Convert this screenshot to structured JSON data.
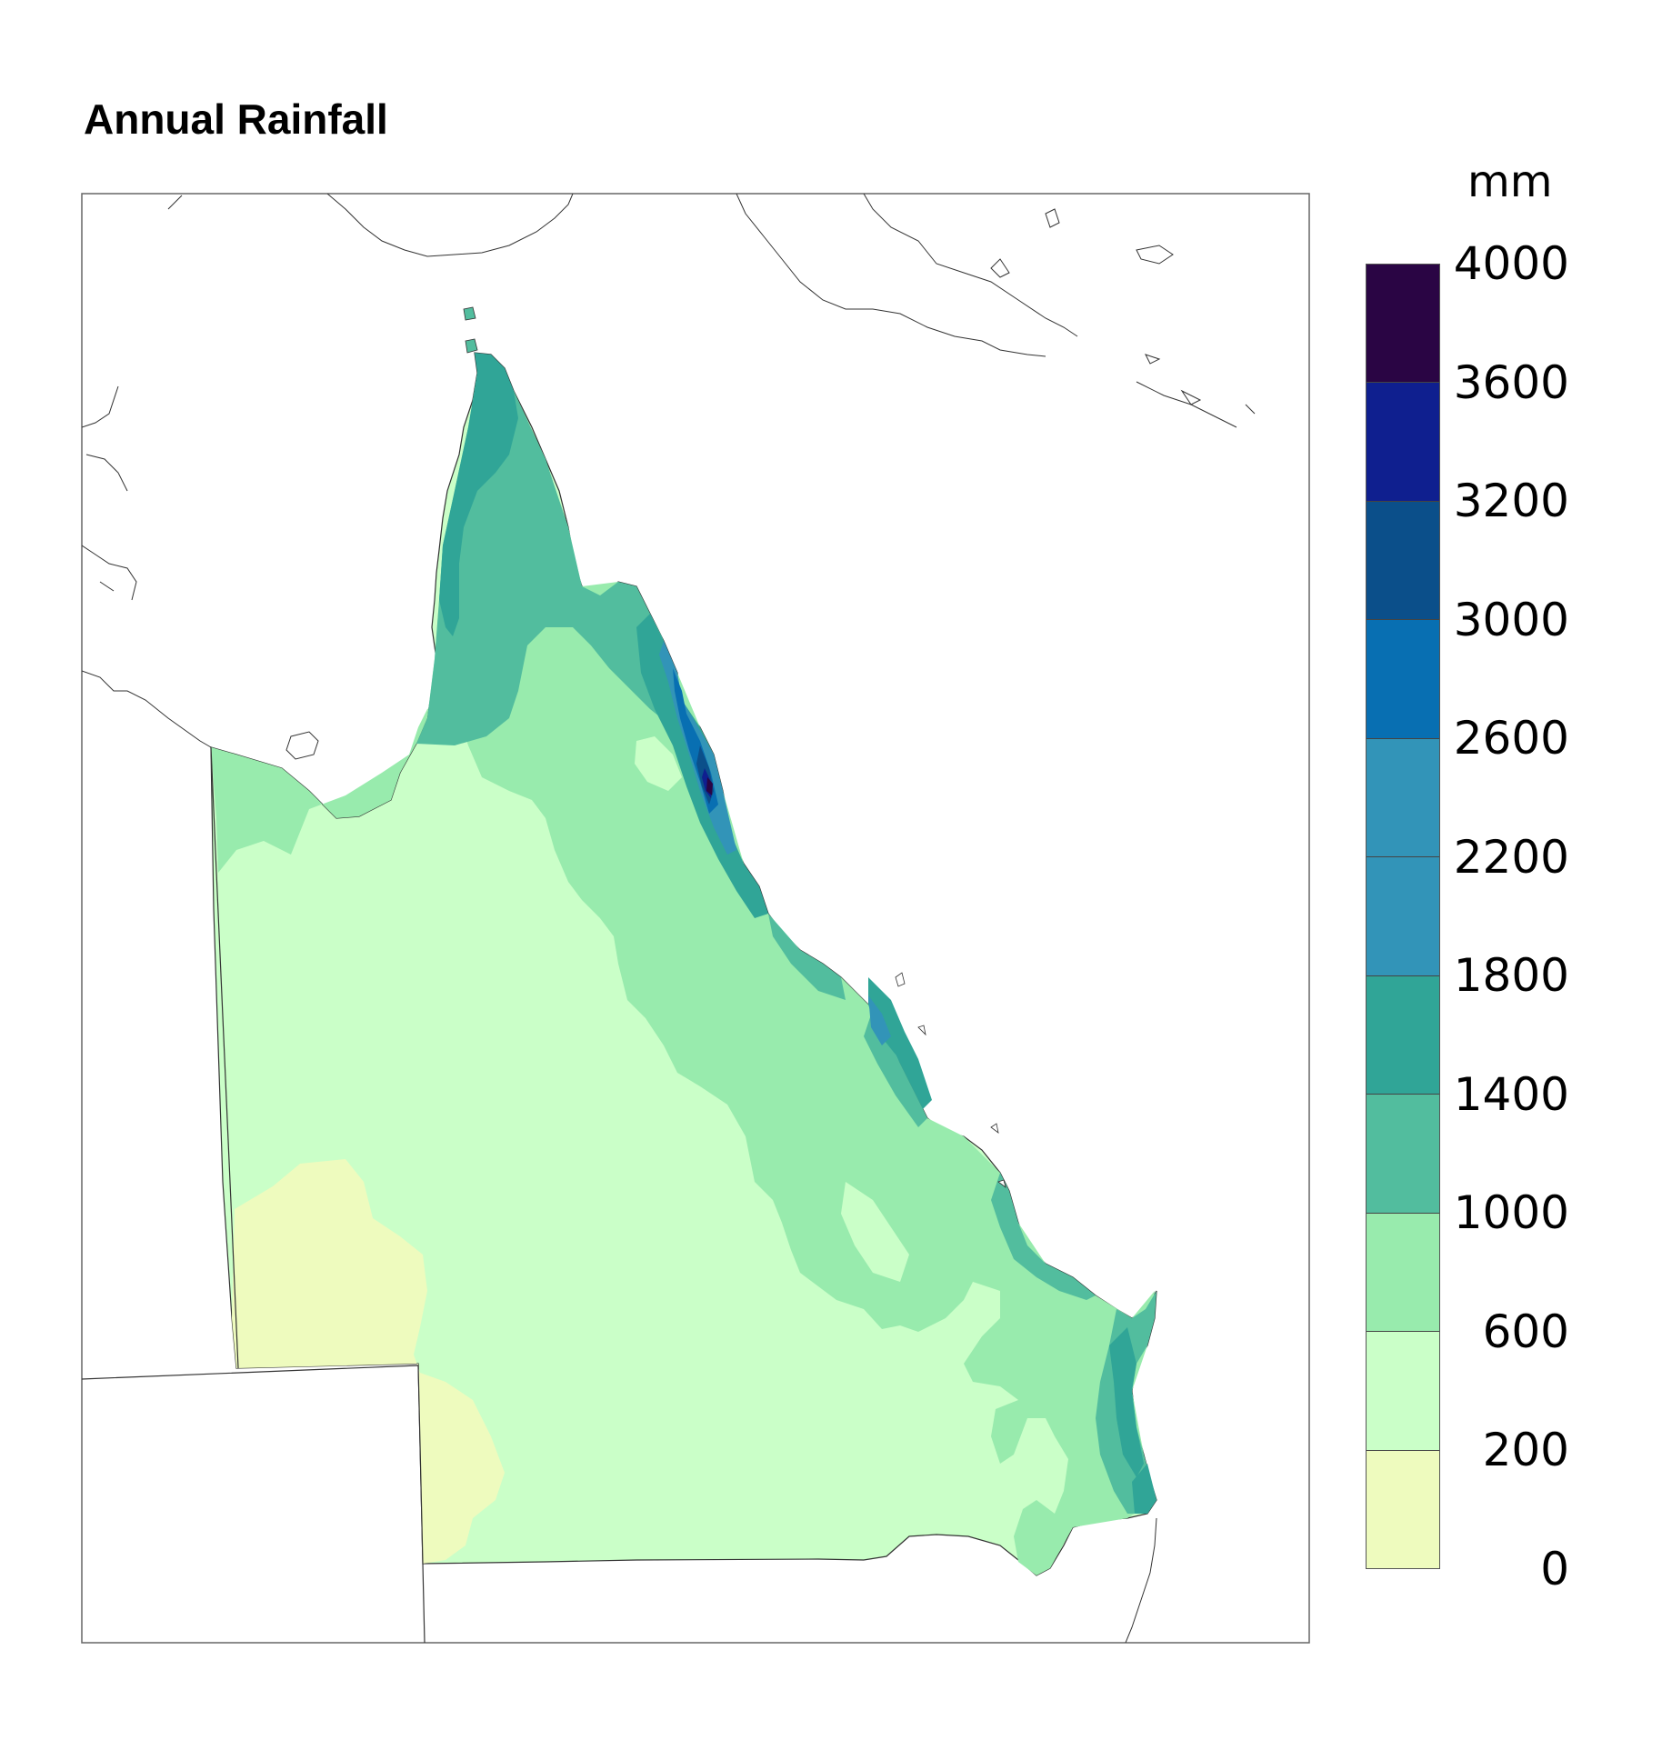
{
  "title": "Annual Rainfall",
  "legend": {
    "unit": "mm",
    "ticks": [
      "4000",
      "3600",
      "3200",
      "3000",
      "2600",
      "2200",
      "1800",
      "1400",
      "1000",
      "600",
      "200",
      "0"
    ],
    "bins": [
      {
        "range": "3600-4000",
        "color": "#2a0544"
      },
      {
        "range": "3200-3600",
        "color": "#0f1f8f"
      },
      {
        "range": "3000-3200",
        "color": "#0b4f8a"
      },
      {
        "range": "2600-3000",
        "color": "#086fb2"
      },
      {
        "range": "2200-2600",
        "color": "#3294b8"
      },
      {
        "range": "1800-2200",
        "color": "#3294b8"
      },
      {
        "range": "1400-1800",
        "color": "#30a597"
      },
      {
        "range": "1000-1400",
        "color": "#52bd9e"
      },
      {
        "range": "600-1000",
        "color": "#98ebad"
      },
      {
        "range": "200-600",
        "color": "#caffc8"
      },
      {
        "range": "0-200",
        "color": "#eefbbe"
      }
    ]
  },
  "colors": {
    "coastline": "#333333",
    "background": "#ffffff"
  }
}
